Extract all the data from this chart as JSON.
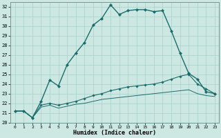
{
  "xlabel": "Humidex (Indice chaleur)",
  "background_color": "#cde8e3",
  "grid_color": "#a8cfc8",
  "line_color": "#1a6b6b",
  "xlim": [
    -0.5,
    23.5
  ],
  "ylim": [
    20,
    32.5
  ],
  "xticks": [
    0,
    1,
    2,
    3,
    4,
    5,
    6,
    7,
    8,
    9,
    10,
    11,
    12,
    13,
    14,
    15,
    16,
    17,
    18,
    19,
    20,
    21,
    22,
    23
  ],
  "yticks": [
    20,
    21,
    22,
    23,
    24,
    25,
    26,
    27,
    28,
    29,
    30,
    31,
    32
  ],
  "line1_x": [
    0,
    1,
    2,
    3,
    4,
    5,
    6,
    7,
    8,
    9,
    10,
    11,
    12,
    13,
    14,
    15,
    16,
    17,
    18,
    19,
    20,
    21,
    22,
    23
  ],
  "line1_y": [
    21.2,
    21.2,
    20.5,
    22.2,
    24.4,
    23.8,
    26.0,
    27.2,
    28.3,
    30.1,
    30.8,
    32.2,
    31.2,
    31.6,
    31.7,
    31.7,
    31.5,
    31.6,
    29.5,
    27.2,
    25.1,
    24.5,
    23.2,
    23.0
  ],
  "line2_x": [
    0,
    1,
    2,
    3,
    4,
    5,
    6,
    7,
    8,
    9,
    10,
    11,
    12,
    13,
    14,
    15,
    16,
    17,
    18,
    19,
    20,
    21,
    22,
    23
  ],
  "line2_y": [
    21.2,
    21.2,
    20.5,
    21.8,
    22.0,
    21.8,
    22.0,
    22.2,
    22.5,
    22.8,
    23.0,
    23.3,
    23.5,
    23.7,
    23.8,
    23.9,
    24.0,
    24.2,
    24.5,
    24.8,
    25.0,
    24.0,
    23.5,
    23.0
  ],
  "line3_x": [
    0,
    1,
    2,
    3,
    4,
    5,
    6,
    7,
    8,
    9,
    10,
    11,
    12,
    13,
    14,
    15,
    16,
    17,
    18,
    19,
    20,
    21,
    22,
    23
  ],
  "line3_y": [
    21.2,
    21.2,
    20.5,
    21.6,
    21.8,
    21.5,
    21.7,
    21.9,
    22.0,
    22.2,
    22.4,
    22.5,
    22.6,
    22.7,
    22.8,
    22.9,
    23.0,
    23.1,
    23.2,
    23.3,
    23.4,
    23.0,
    22.8,
    22.7
  ]
}
